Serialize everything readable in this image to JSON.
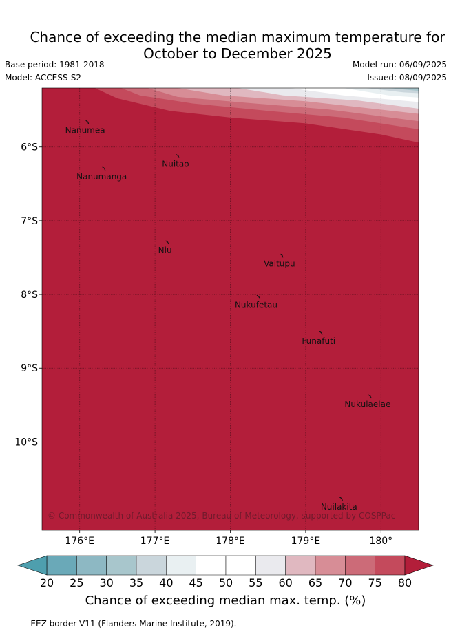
{
  "header": {
    "title_line1": "Chance of exceeding the median maximum temperature for",
    "title_line2": "October to December 2025",
    "base_period": "Base period: 1981-2018",
    "model": "Model: ACCESS-S2",
    "model_run": "Model run: 06/09/2025",
    "issued": "Issued: 08/09/2025"
  },
  "map": {
    "lon_range": [
      175.5,
      180.5
    ],
    "lat_range": [
      -11.2,
      -5.2
    ],
    "lon_ticks": [
      {
        "value": 176,
        "label": "176°E"
      },
      {
        "value": 177,
        "label": "177°E"
      },
      {
        "value": 178,
        "label": "178°E"
      },
      {
        "value": 179,
        "label": "179°E"
      },
      {
        "value": 180,
        "label": "180°"
      }
    ],
    "lat_ticks": [
      {
        "value": -6,
        "label": "6°S"
      },
      {
        "value": -7,
        "label": "7°S"
      },
      {
        "value": -8,
        "label": "8°S"
      },
      {
        "value": -9,
        "label": "9°S"
      },
      {
        "value": -10,
        "label": "10°S"
      }
    ],
    "grid": true,
    "background_color": "#b31e3a",
    "islands": [
      {
        "name": "Nanumea",
        "lon": 176.1,
        "lat": -5.66
      },
      {
        "name": "Nuitao",
        "lon": 177.3,
        "lat": -6.12
      },
      {
        "name": "Nanumanga",
        "lon": 176.32,
        "lat": -6.29
      },
      {
        "name": "Niu",
        "lon": 177.16,
        "lat": -7.29
      },
      {
        "name": "Vaitupu",
        "lon": 178.68,
        "lat": -7.47
      },
      {
        "name": "Nukufetau",
        "lon": 178.37,
        "lat": -8.03
      },
      {
        "name": "Funafuti",
        "lon": 179.2,
        "lat": -8.52
      },
      {
        "name": "Nukulaelae",
        "lon": 179.85,
        "lat": -9.38
      },
      {
        "name": "Nuilakita",
        "lon": 179.47,
        "lat": -10.77
      }
    ],
    "eez_border": [
      {
        "lon": 175.55,
        "lat": -9.8
      },
      {
        "lon": 175.85,
        "lat": -9.81
      },
      {
        "lon": 176.25,
        "lat": -9.83
      },
      {
        "lon": 176.5,
        "lat": -9.9
      },
      {
        "lon": 176.75,
        "lat": -9.98
      },
      {
        "lon": 177.2,
        "lat": -10.1
      },
      {
        "lon": 177.5,
        "lat": -10.55
      },
      {
        "lon": 177.75,
        "lat": -10.9
      },
      {
        "lon": 177.97,
        "lat": -11.2
      }
    ],
    "contours": [
      {
        "level": "75-80",
        "color": "#c44a5c",
        "boundary": [
          [
            175.5,
            -5.2
          ],
          [
            176.2,
            -5.2
          ],
          [
            176.5,
            -5.34
          ],
          [
            177.2,
            -5.51
          ],
          [
            178,
            -5.6
          ],
          [
            179,
            -5.68
          ],
          [
            180,
            -5.83
          ],
          [
            180.5,
            -5.94
          ]
        ]
      },
      {
        "level": "70-75",
        "color": "#cc6b78",
        "boundary": [
          [
            176.55,
            -5.2
          ],
          [
            176.8,
            -5.3
          ],
          [
            177.5,
            -5.41
          ],
          [
            178.5,
            -5.51
          ],
          [
            179.5,
            -5.6
          ],
          [
            180.5,
            -5.76
          ]
        ]
      },
      {
        "level": "65-70",
        "color": "#d78d96",
        "boundary": [
          [
            176.9,
            -5.2
          ],
          [
            177.3,
            -5.32
          ],
          [
            178.2,
            -5.4
          ],
          [
            179.3,
            -5.49
          ],
          [
            180.5,
            -5.65
          ]
        ]
      },
      {
        "level": "60-65",
        "color": "#e0b8c0",
        "boundary": [
          [
            177.3,
            -5.2
          ],
          [
            177.9,
            -5.3
          ],
          [
            179,
            -5.38
          ],
          [
            180.5,
            -5.55
          ]
        ]
      },
      {
        "level": "55-60",
        "color": "#eaeaee",
        "boundary": [
          [
            178.1,
            -5.2
          ],
          [
            178.7,
            -5.3
          ],
          [
            179.7,
            -5.37
          ],
          [
            180.5,
            -5.48
          ]
        ]
      },
      {
        "level": "45-55",
        "color": "#ffffff",
        "boundary": [
          [
            178.8,
            -5.2
          ],
          [
            179.5,
            -5.3
          ],
          [
            180.5,
            -5.39
          ]
        ]
      },
      {
        "level": "40-45",
        "color": "#e9f0f2",
        "boundary": [
          [
            179.5,
            -5.2
          ],
          [
            180.1,
            -5.3
          ],
          [
            180.5,
            -5.33
          ]
        ]
      },
      {
        "level": "35-40",
        "color": "#cad6dc",
        "boundary": [
          [
            179.8,
            -5.2
          ],
          [
            180.3,
            -5.26
          ],
          [
            180.5,
            -5.27
          ]
        ]
      },
      {
        "level": "30-35",
        "color": "#a8c6cc",
        "boundary": [
          [
            180.1,
            -5.2
          ],
          [
            180.5,
            -5.24
          ]
        ]
      }
    ],
    "copyright": "© Commonwealth of Australia 2025, Bureau of Meteorology, supported by COSPPac"
  },
  "colorbar": {
    "ticks": [
      "20",
      "25",
      "30",
      "35",
      "40",
      "45",
      "50",
      "55",
      "60",
      "65",
      "70",
      "75",
      "80"
    ],
    "colors": [
      "#6aa9b8",
      "#8db8c3",
      "#a8c6cc",
      "#cad6dc",
      "#e9f0f2",
      "#ffffff",
      "#ffffff",
      "#eaeaee",
      "#e0b8c0",
      "#d78d96",
      "#cc6b78",
      "#c44a5c"
    ],
    "under_color": "#4e9fae",
    "over_color": "#b31e3a",
    "label": "Chance of exceeding median max. temp. (%)"
  },
  "footnote": "-- -- -- EEZ border V11 (Flanders Marine Institute, 2019)."
}
